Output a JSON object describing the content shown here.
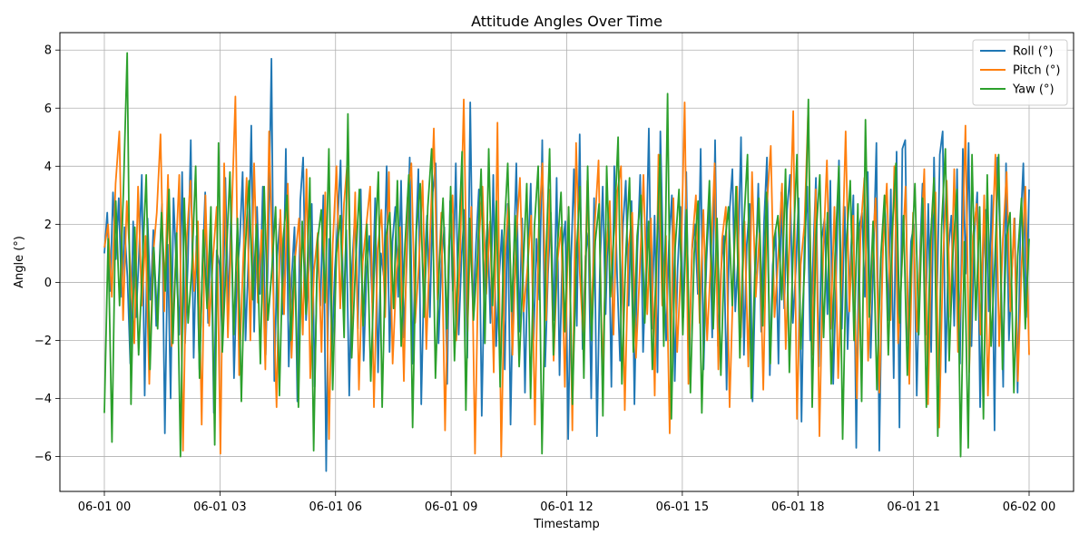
{
  "chart_data": {
    "type": "line",
    "title": "Attitude Angles Over Time",
    "xlabel": "Timestamp",
    "ylabel": "Angle (°)",
    "x_start": "2023-06-01T00:00:00",
    "x_end": "2023-06-02T00:00:00",
    "x_ticks": [
      "06-01 00",
      "06-01 03",
      "06-01 06",
      "06-01 09",
      "06-01 12",
      "06-01 15",
      "06-01 18",
      "06-01 21",
      "06-02 00"
    ],
    "y_ticks": [
      -6,
      -4,
      -2,
      0,
      2,
      4,
      6,
      8
    ],
    "ylim": [
      -7.2,
      8.6
    ],
    "grid": true,
    "legend_position": "top-right",
    "series": [
      {
        "name": "Roll (°)",
        "color": "#1f77b4",
        "values": [
          1.0,
          2.4,
          -0.3,
          3.1,
          0.8,
          2.9,
          -0.5,
          1.9,
          0.2,
          -2.8,
          2.1,
          -1.2,
          0.9,
          3.7,
          -3.9,
          2.2,
          -0.6,
          1.8,
          -1.5,
          0.4,
          2.7,
          -5.2,
          1.3,
          -4.0,
          2.9,
          0.5,
          -1.8,
          3.8,
          -2.1,
          0.7,
          4.9,
          -2.6,
          1.6,
          -3.0,
          0.3,
          3.1,
          -1.4,
          2.0,
          -4.5,
          1.1,
          0.6,
          -2.2,
          3.6,
          -0.9,
          2.5,
          -3.3,
          0.2,
          1.4,
          3.8,
          -2.0,
          0.8,
          5.4,
          -1.7,
          2.6,
          -0.4,
          3.3,
          -2.5,
          1.7,
          7.7,
          -3.4,
          0.9,
          2.2,
          -1.1,
          4.6,
          -2.9,
          0.1,
          1.9,
          -4.1,
          2.8,
          4.3,
          -1.3,
          0.5,
          2.7,
          -3.6,
          1.2,
          -0.8,
          3.0,
          -6.5,
          1.5,
          -2.3,
          0.4,
          2.1,
          4.2,
          -1.0,
          1.8,
          -3.9,
          0.6,
          2.4,
          -1.6,
          3.2,
          -2.7,
          0.3,
          1.6,
          -0.7,
          2.9,
          -3.1,
          1.0,
          0.2,
          4.0,
          -2.4,
          1.4,
          2.6,
          -0.5,
          3.5,
          -1.9,
          0.8,
          4.3,
          -2.8,
          1.1,
          3.9,
          -4.2,
          0.4,
          2.3,
          -1.2,
          3.1,
          4.1,
          -2.1,
          0.7,
          1.9,
          -3.5,
          2.8,
          -0.3,
          4.1,
          -1.8,
          0.9,
          2.5,
          -2.6,
          6.2,
          -1.0,
          1.3,
          3.2,
          -4.6,
          0.6,
          2.0,
          -1.4,
          3.7,
          -2.2,
          0.1,
          1.8,
          -3.0,
          2.7,
          -4.9,
          0.5,
          4.1,
          -1.7,
          2.2,
          -3.8,
          0.8,
          3.4,
          -2.0,
          1.5,
          -0.6,
          4.9,
          -2.9,
          0.3,
          2.4,
          -1.3,
          3.6,
          -3.2,
          1.2,
          2.1,
          -5.4,
          0.7,
          3.9,
          -1.5,
          5.1,
          -2.3,
          0.9,
          1.7,
          -4.0,
          2.9,
          -5.3,
          0.4,
          3.3,
          -1.1,
          2.5,
          -3.6,
          4.0,
          0.2,
          -2.7,
          1.9,
          3.5,
          -0.8,
          2.8,
          -4.2,
          1.0,
          3.7,
          -2.4,
          0.6,
          5.3,
          -1.6,
          2.3,
          -3.1,
          5.2,
          0.8,
          -2.0,
          1.4,
          3.0,
          -3.4,
          0.5,
          2.6,
          -1.2,
          3.8,
          -2.7,
          1.1,
          2.0,
          -0.4,
          4.6,
          -3.0,
          0.7,
          2.9,
          -1.9,
          4.9,
          -2.2,
          0.3,
          1.6,
          -3.7,
          2.4,
          3.9,
          -1.0,
          0.9,
          5.0,
          -2.5,
          1.3,
          2.7,
          -4.1,
          0.2,
          3.4,
          -1.7,
          2.1,
          4.3,
          -3.2,
          0.6,
          1.8,
          -2.8,
          3.1,
          -0.9,
          2.5,
          3.7,
          -1.4,
          0.4,
          2.9,
          -4.8,
          1.2,
          3.3,
          -2.0,
          0.8,
          3.6,
          -2.9,
          1.5,
          2.2,
          -1.1,
          3.5,
          -3.5,
          0.1,
          4.2,
          -1.6,
          2.6,
          -2.3,
          0.7,
          3.0,
          -5.7,
          1.9,
          2.4,
          -0.5,
          3.8,
          -2.6,
          1.0,
          4.8,
          -5.8,
          0.5,
          2.8,
          -1.3,
          3.2,
          -3.3,
          4.5,
          -5.0,
          4.6,
          4.9,
          -2.1,
          1.4,
          2.0,
          -3.9,
          0.6,
          3.4,
          -1.8,
          2.7,
          -2.4,
          4.3,
          -0.7,
          4.4,
          5.2,
          -3.1,
          1.1,
          2.3,
          -1.5,
          3.9,
          -2.8,
          4.6,
          0.3,
          4.8,
          -2.2,
          1.7,
          3.1,
          -4.3,
          0.8,
          2.5,
          -1.0,
          3.0,
          -5.1,
          4.3,
          1.5,
          -3.6,
          4.1,
          -2.0,
          0.4,
          2.2,
          -3.8,
          1.9,
          4.1,
          -1.2,
          3.2
        ]
      },
      {
        "name": "Pitch (°)",
        "color": "#ff7f0e",
        "values": [
          1.2,
          2.0,
          -0.5,
          3.4,
          5.2,
          -1.3,
          2.8,
          0.4,
          -2.1,
          3.3,
          -0.8,
          1.6,
          -3.5,
          0.9,
          2.4,
          5.1,
          -1.0,
          3.7,
          -2.2,
          0.6,
          3.7,
          -5.8,
          1.5,
          3.5,
          -0.3,
          2.1,
          -4.9,
          3.0,
          -1.5,
          0.8,
          2.6,
          -5.9,
          4.1,
          -1.9,
          2.3,
          6.4,
          -3.2,
          0.5,
          3.6,
          -2.0,
          4.1,
          -0.7,
          1.8,
          -3.0,
          5.2,
          0.2,
          -4.3,
          2.5,
          -1.1,
          3.4,
          -2.6,
          0.9,
          2.2,
          -1.8,
          3.9,
          -3.3,
          0.4,
          1.7,
          -2.4,
          3.1,
          -5.4,
          1.3,
          4.0,
          -0.9,
          2.7,
          4.3,
          -1.6,
          3.1,
          -3.7,
          0.7,
          2.0,
          3.3,
          -4.3,
          1.1,
          2.5,
          -1.2,
          3.8,
          -2.8,
          0.3,
          1.9,
          -3.4,
          2.9,
          4.1,
          -1.4,
          0.6,
          3.5,
          -2.3,
          1.6,
          5.3,
          -0.6,
          2.4,
          -5.1,
          1.2,
          3.0,
          -2.0,
          0.8,
          6.3,
          -1.7,
          2.6,
          -5.9,
          1.4,
          3.3,
          -0.4,
          2.1,
          -3.1,
          5.5,
          -6.0,
          0.9,
          2.8,
          -2.5,
          1.5,
          3.6,
          -1.0,
          0.5,
          2.3,
          -4.9,
          1.8,
          4.1,
          -1.3,
          3.2,
          -2.7,
          0.7,
          1.9,
          -3.6,
          2.6,
          -5.1,
          4.8,
          0.3,
          -2.2,
          3.5,
          -1.5,
          2.0,
          4.2,
          -3.2,
          0.9,
          2.8,
          -1.8,
          3.1,
          4.0,
          -4.4,
          1.2,
          2.4,
          -2.6,
          0.4,
          3.7,
          -1.1,
          2.2,
          -3.9,
          4.4,
          -0.8,
          1.6,
          -5.2,
          2.9,
          -2.4,
          0.6,
          6.2,
          -3.5,
          1.3,
          3.0,
          -1.4,
          2.5,
          -2.0,
          0.8,
          4.1,
          -3.0,
          1.5,
          2.6,
          -4.3,
          0.2,
          3.3,
          -1.9,
          2.1,
          -2.9,
          3.8,
          -0.5,
          1.7,
          -3.7,
          2.7,
          4.7,
          -1.2,
          0.9,
          3.4,
          -2.3,
          1.4,
          5.9,
          -4.7,
          0.6,
          2.0,
          6.0,
          -2.5,
          3.2,
          -5.3,
          1.0,
          4.2,
          -1.6,
          2.6,
          -3.3,
          0.4,
          5.2,
          -1.0,
          2.3,
          -4.0,
          1.8,
          3.6,
          -2.7,
          0.7,
          2.9,
          -3.8,
          1.2,
          3.4,
          -1.3,
          4.0,
          -2.1,
          0.5,
          3.3,
          -3.5,
          2.4,
          -1.7,
          1.0,
          3.9,
          -4.2,
          2.2,
          3.1,
          -5.0,
          0.8,
          3.5,
          -1.2,
          3.9,
          -2.4,
          0.3,
          5.4,
          -3.1,
          1.6,
          2.7,
          -1.8,
          3.0,
          -3.9,
          0.9,
          4.4,
          -2.2,
          1.5,
          3.8,
          -1.0,
          2.2,
          -3.4,
          0.6,
          3.3,
          -2.5
        ]
      },
      {
        "name": "Yaw (°)",
        "color": "#2ca02c",
        "values": [
          -4.5,
          1.5,
          -5.5,
          2.8,
          -0.8,
          3.1,
          7.9,
          -4.2,
          1.9,
          -2.5,
          0.6,
          3.7,
          -3.0,
          1.2,
          -1.6,
          2.4,
          -0.3,
          3.2,
          -2.1,
          1.7,
          -6.0,
          2.9,
          -1.4,
          0.5,
          4.0,
          -3.3,
          1.8,
          -0.9,
          2.6,
          -5.6,
          4.8,
          -2.4,
          0.7,
          3.8,
          -1.8,
          2.2,
          -4.1,
          1.1,
          3.5,
          -0.6,
          2.0,
          -2.8,
          3.3,
          -1.3,
          0.4,
          2.6,
          -3.9,
          1.5,
          3.0,
          -2.0,
          0.9,
          -4.3,
          2.1,
          -1.1,
          3.6,
          -5.8,
          1.4,
          2.5,
          -0.7,
          4.6,
          -3.7,
          1.0,
          2.3,
          -1.9,
          5.8,
          -2.6,
          0.6,
          3.2,
          -1.5,
          2.0,
          -3.4,
          0.8,
          3.8,
          -4.3,
          1.6,
          2.4,
          -0.9,
          3.5,
          -2.2,
          1.3,
          3.7,
          -5.0,
          1.8,
          3.4,
          -1.2,
          2.6,
          4.6,
          -3.3,
          0.5,
          2.9,
          -1.6,
          3.3,
          -2.7,
          1.0,
          4.5,
          -4.4,
          2.2,
          -1.3,
          0.7,
          3.9,
          -2.1,
          4.6,
          -0.8,
          2.8,
          -3.6,
          1.5,
          4.1,
          -1.0,
          2.3,
          -2.9,
          0.3,
          3.4,
          -4.0,
          1.9,
          4.0,
          -5.9,
          0.6,
          4.6,
          -2.5,
          1.1,
          3.1,
          -1.7,
          2.6,
          -4.2,
          0.8,
          3.3,
          -3.3,
          4.0,
          -2.0,
          1.4,
          2.7,
          -4.6,
          4.0,
          -0.5,
          1.9,
          5.0,
          -3.5,
          0.9,
          3.6,
          -2.4,
          1.6,
          3.0,
          -1.4,
          2.1,
          -3.0,
          0.4,
          4.4,
          -2.2,
          6.5,
          -4.7,
          1.2,
          3.2,
          -1.8,
          2.5,
          -3.8,
          1.0,
          2.8,
          -4.5,
          0.6,
          3.5,
          -1.6,
          2.2,
          -3.2,
          1.3,
          2.6,
          -0.8,
          3.3,
          -2.6,
          1.9,
          4.4,
          -4.0,
          0.7,
          2.9,
          -1.5,
          3.1,
          -2.8,
          1.5,
          2.3,
          -0.6,
          3.9,
          -3.1,
          1.1,
          4.4,
          -2.3,
          0.5,
          6.3,
          -4.3,
          1.6,
          3.7,
          -1.9,
          2.4,
          -3.5,
          0.9,
          4.0,
          -5.4,
          1.3,
          3.5,
          -2.0,
          2.7,
          -4.1,
          5.6,
          -1.2,
          2.1,
          -3.7,
          0.8,
          3.0,
          -2.5,
          1.7,
          4.1,
          -1.4,
          2.3,
          -3.2,
          0.6,
          3.4,
          -1.8,
          2.9,
          -4.3,
          1.2,
          3.6,
          -5.3,
          1.9,
          4.6,
          -2.7,
          1.0,
          3.2,
          -6.0,
          1.4,
          -5.7,
          4.4,
          -1.3,
          2.6,
          -4.7,
          3.7,
          -2.2,
          0.7,
          4.4,
          -3.0,
          1.5,
          2.4,
          -3.8,
          0.9,
          2.9,
          -1.6,
          1.5
        ]
      }
    ]
  }
}
